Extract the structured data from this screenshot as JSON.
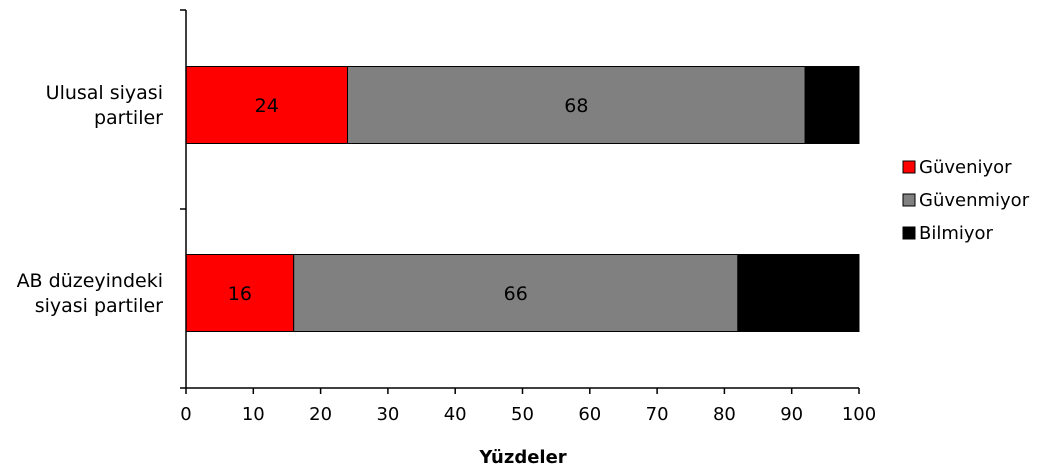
{
  "chart_data": {
    "type": "bar",
    "orientation": "horizontal",
    "stacked": true,
    "categories": [
      "Ulusal siyasi partiler",
      "AB düzeyindeki siyasi partiler"
    ],
    "category_label_lines": [
      [
        "Ulusal siyasi",
        "partiler"
      ],
      [
        "AB düzeyindeki",
        "siyasi partiler"
      ]
    ],
    "series": [
      {
        "name": "Güveniyor",
        "color": "#ff0000",
        "values": [
          24,
          16
        ],
        "labels": [
          "24",
          "16"
        ]
      },
      {
        "name": "Güvenmiyor",
        "color": "#808080",
        "values": [
          68,
          66
        ],
        "labels": [
          "68",
          "66"
        ]
      },
      {
        "name": "Bilmiyor",
        "color": "#000000",
        "values": [
          8,
          18
        ],
        "labels": [
          "",
          ""
        ]
      }
    ],
    "xlabel": "Yüzdeler",
    "xlim": [
      0,
      100
    ],
    "xticks": [
      0,
      10,
      20,
      30,
      40,
      50,
      60,
      70,
      80,
      90,
      100
    ],
    "grid": false,
    "legend_position": "right"
  }
}
